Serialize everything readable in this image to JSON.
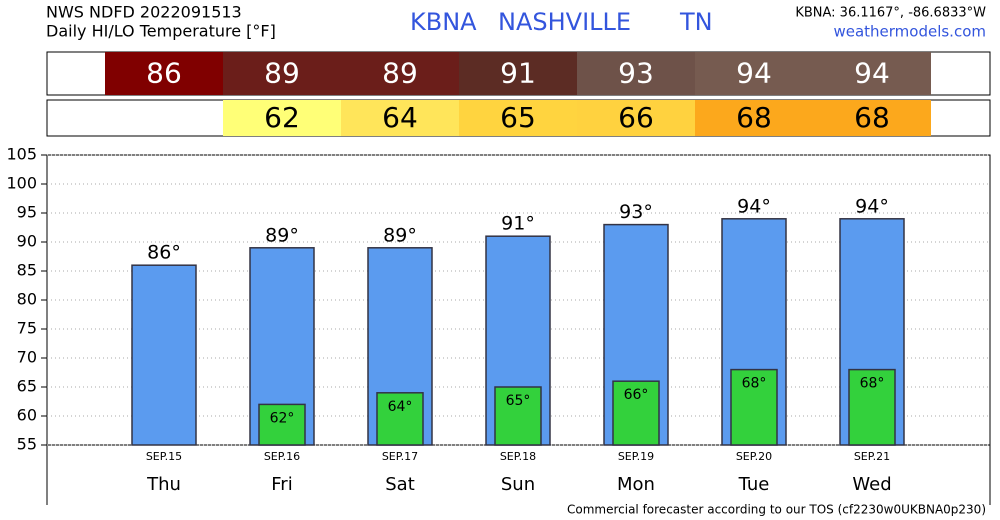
{
  "chart_data": {
    "type": "bar",
    "source": "NWS NDFD 2022091513",
    "title": "Daily HI/LO Temperature [°F]",
    "station": "KBNA",
    "city": "NASHVILLE",
    "state": "TN",
    "coords": "KBNA: 36.1167°, -86.6833°W",
    "site": "weathermodels.com",
    "footer": "Commercial forecaster according to our TOS (cf2230w0UKBNA0p230)",
    "categories": [
      "Thu",
      "Fri",
      "Sat",
      "Sun",
      "Mon",
      "Tue",
      "Wed"
    ],
    "dates": [
      "SEP.15",
      "SEP.16",
      "SEP.17",
      "SEP.18",
      "SEP.19",
      "SEP.20",
      "SEP.21"
    ],
    "series": [
      {
        "name": "HI",
        "color": "#5b9bef",
        "values": [
          86,
          89,
          89,
          91,
          93,
          94,
          94
        ],
        "value_labels": [
          "86°",
          "89°",
          "89°",
          "91°",
          "93°",
          "94°",
          "94°"
        ],
        "cell_colors": [
          "#800000",
          "#6b1e1a",
          "#6b1e1a",
          "#5c2c24",
          "#6e5249",
          "#765b50",
          "#765b50"
        ]
      },
      {
        "name": "LO",
        "color": "#33d13c",
        "values": [
          null,
          62,
          64,
          65,
          66,
          68,
          68
        ],
        "value_labels": [
          null,
          "62°",
          "64°",
          "65°",
          "66°",
          "68°",
          "68°"
        ],
        "cell_colors": [
          null,
          "#ffff77",
          "#ffe55a",
          "#ffd43f",
          "#ffd23f",
          "#fca81c",
          "#fca81c"
        ]
      }
    ],
    "ylim": [
      55,
      105
    ],
    "yticks": [
      55,
      60,
      65,
      70,
      75,
      80,
      85,
      90,
      95,
      100,
      105
    ],
    "grid": true
  }
}
